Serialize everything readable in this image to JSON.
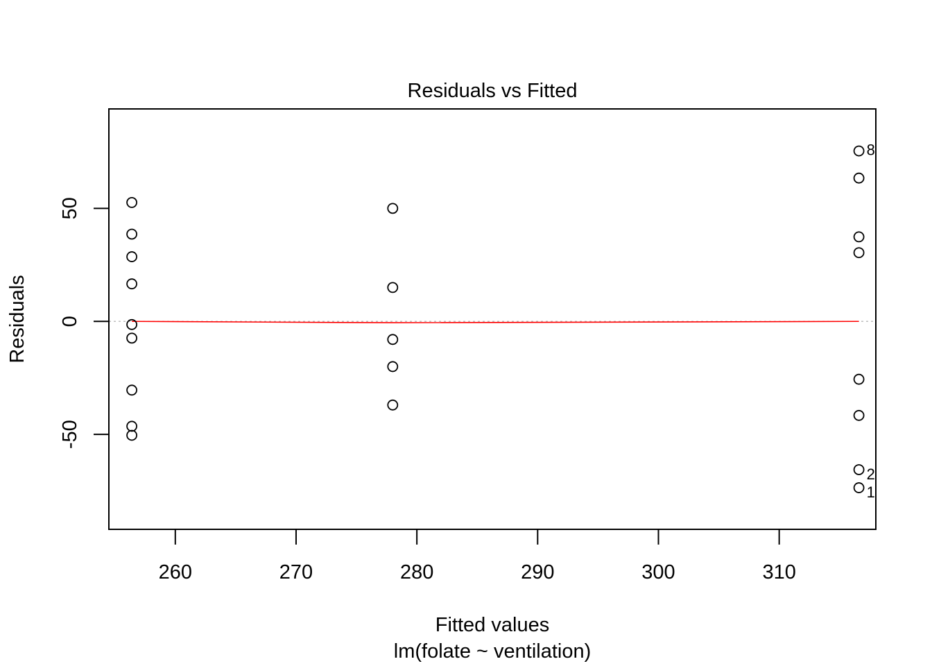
{
  "chart_data": {
    "type": "scatter",
    "title": "Residuals vs Fitted",
    "xlabel": "Fitted values",
    "subtitle": "lm(folate ~ ventilation)",
    "ylabel": "Residuals",
    "xlim": [
      254.5,
      318.0
    ],
    "ylim": [
      -92.0,
      94.0
    ],
    "xticks": [
      260,
      270,
      280,
      290,
      300,
      310
    ],
    "yticks": [
      -50,
      0,
      50
    ],
    "reference_line": {
      "y": 0,
      "color": "#bebebe",
      "style": "dotted"
    },
    "smoother": {
      "color": "#ff0000",
      "points": [
        [
          256.4,
          0.0
        ],
        [
          278.0,
          -0.6
        ],
        [
          316.6,
          0.0
        ]
      ]
    },
    "series": [
      {
        "x": [
          256.4,
          256.4,
          256.4,
          256.4,
          256.4,
          256.4,
          256.4,
          256.4,
          256.4,
          278.0,
          278.0,
          278.0,
          278.0,
          278.0,
          316.6,
          316.6,
          316.6,
          316.6,
          316.6,
          316.6,
          316.6,
          316.6
        ],
        "y": [
          52.6,
          38.6,
          28.6,
          16.6,
          -1.4,
          -7.4,
          -30.4,
          -46.4,
          -50.4,
          50.0,
          15.0,
          -8.0,
          -20.0,
          -37.0,
          75.4,
          63.4,
          37.4,
          30.4,
          -25.6,
          -41.6,
          -65.6,
          -73.6
        ]
      }
    ],
    "point_labels": [
      {
        "text": "8",
        "x": 316.6,
        "y": 75.4
      },
      {
        "text": "2",
        "x": 316.6,
        "y": -65.6
      },
      {
        "text": "1",
        "x": 316.6,
        "y": -73.6
      }
    ]
  }
}
